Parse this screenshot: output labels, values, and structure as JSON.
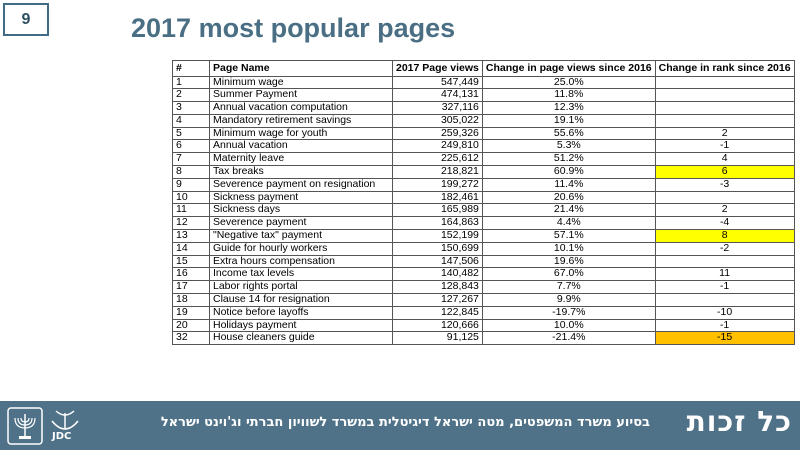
{
  "slide_number": "9",
  "title": "2017 most popular pages",
  "table": {
    "headers": {
      "num": "#",
      "name": "Page Name",
      "views": "2017 Page views",
      "change": "Change in page views since 2016",
      "rank": "Change in rank since 2016"
    },
    "rows": [
      {
        "num": "1",
        "name": "Minimum wage",
        "views": "547,449",
        "change": "25.0%",
        "rank": "",
        "highlight": ""
      },
      {
        "num": "2",
        "name": "Summer Payment",
        "views": "474,131",
        "change": "11.8%",
        "rank": "",
        "highlight": ""
      },
      {
        "num": "3",
        "name": "Annual vacation computation",
        "views": "327,116",
        "change": "12.3%",
        "rank": "",
        "highlight": ""
      },
      {
        "num": "4",
        "name": "Mandatory retirement savings",
        "views": "305,022",
        "change": "19.1%",
        "rank": "",
        "highlight": ""
      },
      {
        "num": "5",
        "name": "Minimum wage for youth",
        "views": "259,326",
        "change": "55.6%",
        "rank": "2",
        "highlight": ""
      },
      {
        "num": "6",
        "name": "Annual vacation",
        "views": "249,810",
        "change": "5.3%",
        "rank": "-1",
        "highlight": ""
      },
      {
        "num": "7",
        "name": "Maternity leave",
        "views": "225,612",
        "change": "51.2%",
        "rank": "4",
        "highlight": ""
      },
      {
        "num": "8",
        "name": "Tax breaks",
        "views": "218,821",
        "change": "60.9%",
        "rank": "6",
        "highlight": "yellow"
      },
      {
        "num": "9",
        "name": "Severence payment on resignation",
        "views": "199,272",
        "change": "11.4%",
        "rank": "-3",
        "highlight": ""
      },
      {
        "num": "10",
        "name": "Sickness payment",
        "views": "182,461",
        "change": "20.6%",
        "rank": "",
        "highlight": ""
      },
      {
        "num": "11",
        "name": "Sickness days",
        "views": "165,989",
        "change": "21.4%",
        "rank": "2",
        "highlight": ""
      },
      {
        "num": "12",
        "name": "Severence payment",
        "views": "164,863",
        "change": "4.4%",
        "rank": "-4",
        "highlight": ""
      },
      {
        "num": "13",
        "name": "\"Negative tax\" payment",
        "views": "152,199",
        "change": "57.1%",
        "rank": "8",
        "highlight": "yellow"
      },
      {
        "num": "14",
        "name": "Guide for hourly workers",
        "views": "150,699",
        "change": "10.1%",
        "rank": "-2",
        "highlight": ""
      },
      {
        "num": "15",
        "name": "Extra hours compensation",
        "views": "147,506",
        "change": "19.6%",
        "rank": "",
        "highlight": ""
      },
      {
        "num": "16",
        "name": "Income tax levels",
        "views": "140,482",
        "change": "67.0%",
        "rank": "11",
        "highlight": ""
      },
      {
        "num": "17",
        "name": "Labor rights portal",
        "views": "128,843",
        "change": "7.7%",
        "rank": "-1",
        "highlight": ""
      },
      {
        "num": "18",
        "name": "Clause 14 for resignation",
        "views": "127,267",
        "change": "9.9%",
        "rank": "",
        "highlight": ""
      },
      {
        "num": "19",
        "name": "Notice before layoffs",
        "views": "122,845",
        "change": "-19.7%",
        "rank": "-10",
        "highlight": ""
      },
      {
        "num": "20",
        "name": "Holidays payment",
        "views": "120,666",
        "change": "10.0%",
        "rank": "-1",
        "highlight": ""
      },
      {
        "num": "32",
        "name": "House cleaners guide",
        "views": "91,125",
        "change": "-21.4%",
        "rank": "-15",
        "highlight": "orange"
      }
    ]
  },
  "footer": {
    "text": "בסיוע משרד המשפטים, מטה ישראל דיגיטלית במשרד לשוויון חברתי וג'וינט ישראל",
    "logo_text": "כל זכות",
    "jdc_label": "JDC",
    "background": "#4f7289"
  },
  "colors": {
    "title": "#4a6f84",
    "highlight_yellow": "#ffff00",
    "highlight_orange": "#ffc000"
  }
}
